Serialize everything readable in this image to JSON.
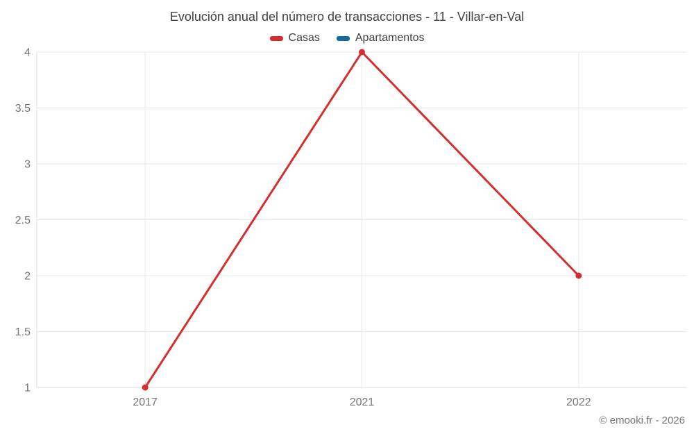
{
  "footer": {
    "credit": "© emooki.fr - 2026"
  },
  "chart_data": {
    "type": "line",
    "title": "Evolución anual del número de transacciones - 11 - Villar-en-Val",
    "categories": [
      "2017",
      "2021",
      "2022"
    ],
    "y_ticks": [
      1,
      1.5,
      2,
      2.5,
      3,
      3.5,
      4
    ],
    "ylim": [
      1,
      4
    ],
    "xlabel": "",
    "ylabel": "",
    "grid": true,
    "legend_position": "top",
    "legend": [
      {
        "label": "Casas",
        "color": "#d32f2f"
      },
      {
        "label": "Apartamentos",
        "color": "#17699e"
      }
    ],
    "series": [
      {
        "name": "Casas",
        "color": "#d32f2f",
        "values": [
          1,
          4,
          2
        ]
      }
    ],
    "colors": {
      "grid_line": "#e8e8e8",
      "axis_line": "#dcdcdc",
      "tick_text": "#757575",
      "title_text": "#424242"
    }
  }
}
